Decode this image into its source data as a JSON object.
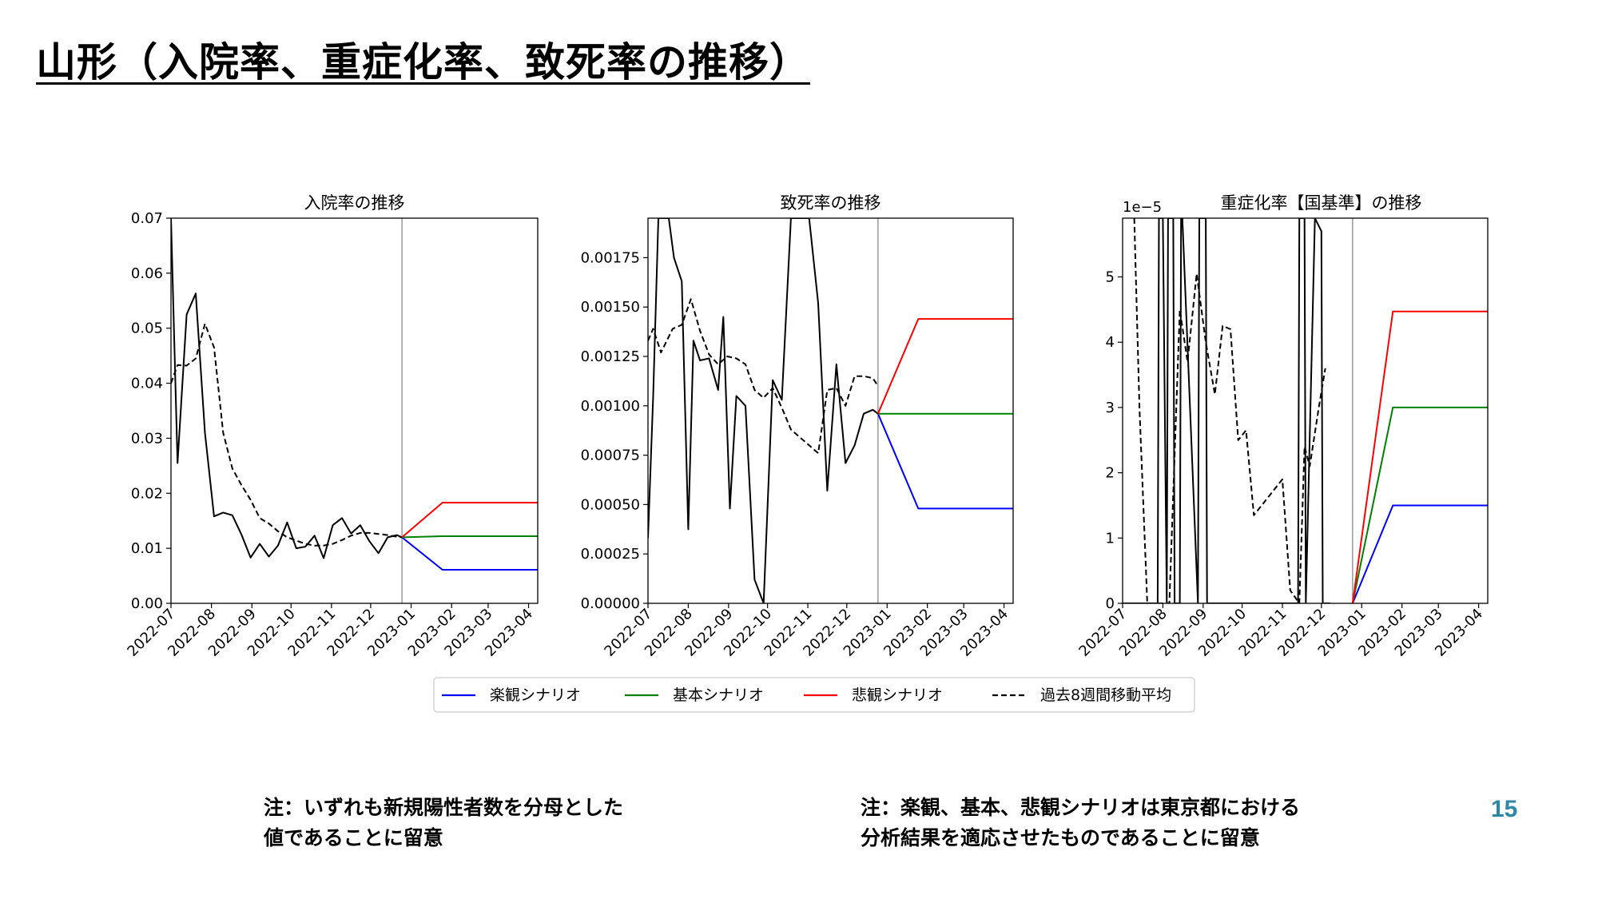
{
  "slide": {
    "title": "山形（入院率、重症化率、致死率の推移）",
    "note_left": [
      "注：いずれも新規陽性者数を分母とした",
      "値であることに留意"
    ],
    "note_right": [
      "注：楽観、基本、悲観シナリオは東京都における",
      "分析結果を適応させたものであることに留意"
    ],
    "page_number": "15"
  },
  "colors": {
    "optimistic": "#0000ff",
    "base": "#008000",
    "pessimistic": "#ff0000",
    "actual": "#000000",
    "moving_avg": "#000000",
    "divider": "#808080"
  },
  "legend": {
    "position": "bottom-center",
    "items": [
      {
        "label": "楽観シナリオ",
        "color": "#0000ff",
        "style": "solid"
      },
      {
        "label": "基本シナリオ",
        "color": "#008000",
        "style": "solid"
      },
      {
        "label": "悲観シナリオ",
        "color": "#ff0000",
        "style": "solid"
      },
      {
        "label": "過去8週間移動平均",
        "color": "#000000",
        "style": "dashed"
      }
    ]
  },
  "chart_data": [
    {
      "type": "line",
      "title": "入院率の推移",
      "x_ticks": [
        "2022-07",
        "2022-08",
        "2022-09",
        "2022-10",
        "2022-11",
        "2022-12",
        "2023-01",
        "2023-02",
        "2023-03",
        "2023-04"
      ],
      "xlim": [
        "2022-07-01",
        "2023-04-08"
      ],
      "divider_x": "2022-12-25",
      "ylim": [
        0,
        0.07
      ],
      "y_ticks": [
        "0.00",
        "0.01",
        "0.02",
        "0.03",
        "0.04",
        "0.05",
        "0.06",
        "0.07"
      ],
      "y_multiplier": "",
      "grid": false,
      "series": [
        {
          "name": "actual",
          "style": "solid",
          "x": [
            "2022-07-01",
            "2022-07-06",
            "2022-07-13",
            "2022-07-20",
            "2022-07-27",
            "2022-08-03",
            "2022-08-10",
            "2022-08-17",
            "2022-08-24",
            "2022-08-31",
            "2022-09-07",
            "2022-09-14",
            "2022-09-21",
            "2022-09-28",
            "2022-10-05",
            "2022-10-12",
            "2022-10-19",
            "2022-10-26",
            "2022-11-02",
            "2022-11-09",
            "2022-11-16",
            "2022-11-23",
            "2022-11-30",
            "2022-12-07",
            "2022-12-14",
            "2022-12-21",
            "2022-12-25"
          ],
          "y": [
            0.07,
            0.0255,
            0.0525,
            0.0563,
            0.031,
            0.0158,
            0.0165,
            0.016,
            0.0125,
            0.0083,
            0.0108,
            0.0085,
            0.0105,
            0.0147,
            0.01,
            0.0103,
            0.0123,
            0.0082,
            0.0142,
            0.0155,
            0.0127,
            0.0142,
            0.0113,
            0.0091,
            0.012,
            0.0124,
            0.012
          ]
        },
        {
          "name": "moving_avg",
          "style": "dashed",
          "x": [
            "2022-07-01",
            "2022-07-06",
            "2022-07-13",
            "2022-07-20",
            "2022-07-27",
            "2022-08-03",
            "2022-08-10",
            "2022-08-17",
            "2022-08-24",
            "2022-08-31",
            "2022-09-07",
            "2022-09-14",
            "2022-09-21",
            "2022-09-28",
            "2022-10-05",
            "2022-10-12",
            "2022-10-19",
            "2022-10-26",
            "2022-11-02",
            "2022-11-09",
            "2022-11-16",
            "2022-11-23",
            "2022-11-30",
            "2022-12-07",
            "2022-12-14",
            "2022-12-21",
            "2022-12-25"
          ],
          "y": [
            0.04,
            0.0433,
            0.0432,
            0.0445,
            0.0508,
            0.0465,
            0.031,
            0.0245,
            0.0215,
            0.0188,
            0.0155,
            0.0145,
            0.0131,
            0.012,
            0.0114,
            0.0108,
            0.0105,
            0.0105,
            0.0108,
            0.0115,
            0.0123,
            0.0128,
            0.0128,
            0.0126,
            0.0124,
            0.0121,
            0.012
          ]
        },
        {
          "name": "楽観シナリオ",
          "color": "#0000ff",
          "x": [
            "2022-12-25",
            "2023-01-25",
            "2023-04-08"
          ],
          "y": [
            0.012,
            0.0061,
            0.0061
          ]
        },
        {
          "name": "基本シナリオ",
          "color": "#008000",
          "x": [
            "2022-12-25",
            "2023-01-25",
            "2023-04-08"
          ],
          "y": [
            0.012,
            0.0122,
            0.0122
          ]
        },
        {
          "name": "悲観シナリオ",
          "color": "#ff0000",
          "x": [
            "2022-12-25",
            "2023-01-25",
            "2023-04-08"
          ],
          "y": [
            0.012,
            0.0183,
            0.0183
          ]
        }
      ]
    },
    {
      "type": "line",
      "title": "致死率の推移",
      "x_ticks": [
        "2022-07",
        "2022-08",
        "2022-09",
        "2022-10",
        "2022-11",
        "2022-12",
        "2023-01",
        "2023-02",
        "2023-03",
        "2023-04"
      ],
      "xlim": [
        "2022-07-01",
        "2023-04-08"
      ],
      "divider_x": "2022-12-25",
      "ylim": [
        0,
        0.00195
      ],
      "y_ticks": [
        "0.00000",
        "0.00025",
        "0.00050",
        "0.00075",
        "0.00100",
        "0.00125",
        "0.00150",
        "0.00175"
      ],
      "y_multiplier": "",
      "grid": false,
      "series": [
        {
          "name": "actual",
          "style": "solid",
          "x": [
            "2022-07-01",
            "2022-07-05",
            "2022-07-09",
            "2022-07-13",
            "2022-07-17",
            "2022-07-21",
            "2022-07-27",
            "2022-08-01",
            "2022-08-05",
            "2022-08-10",
            "2022-08-17",
            "2022-08-24",
            "2022-08-28",
            "2022-09-02",
            "2022-09-07",
            "2022-09-14",
            "2022-09-21",
            "2022-09-28",
            "2022-10-05",
            "2022-10-12",
            "2022-10-19",
            "2022-10-23",
            "2022-10-26",
            "2022-11-02",
            "2022-11-09",
            "2022-11-16",
            "2022-11-23",
            "2022-11-30",
            "2022-12-07",
            "2022-12-14",
            "2022-12-21",
            "2022-12-25"
          ],
          "y": [
            0.00033,
            0.00105,
            0.00195,
            0.00195,
            0.00195,
            0.00175,
            0.00163,
            0.000375,
            0.00133,
            0.00123,
            0.00124,
            0.00108,
            0.00145,
            0.00048,
            0.00105,
            0.001,
            0.00012,
            0.0,
            0.00113,
            0.00103,
            0.00195,
            0.00195,
            0.00195,
            0.00195,
            0.00152,
            0.00057,
            0.00121,
            0.00071,
            0.0008,
            0.00096,
            0.00098,
            0.00096
          ]
        },
        {
          "name": "moving_avg",
          "style": "dashed",
          "x": [
            "2022-07-01",
            "2022-07-05",
            "2022-07-11",
            "2022-07-20",
            "2022-07-27",
            "2022-08-03",
            "2022-08-10",
            "2022-08-17",
            "2022-08-24",
            "2022-08-31",
            "2022-09-07",
            "2022-09-14",
            "2022-09-21",
            "2022-09-28",
            "2022-10-05",
            "2022-10-12",
            "2022-10-19",
            "2022-10-26",
            "2022-11-02",
            "2022-11-09",
            "2022-11-16",
            "2022-11-23",
            "2022-11-30",
            "2022-12-07",
            "2022-12-14",
            "2022-12-21",
            "2022-12-25"
          ],
          "y": [
            0.00133,
            0.00139,
            0.00127,
            0.00139,
            0.00141,
            0.00154,
            0.00138,
            0.00126,
            0.00121,
            0.00125,
            0.00124,
            0.00121,
            0.00108,
            0.00104,
            0.00109,
            0.00099,
            0.00088,
            0.00084,
            0.0008,
            0.00076,
            0.00108,
            0.00109,
            0.001,
            0.00115,
            0.00115,
            0.00114,
            0.0011
          ]
        },
        {
          "name": "楽観シナリオ",
          "color": "#0000ff",
          "x": [
            "2022-12-25",
            "2023-01-25",
            "2023-04-08"
          ],
          "y": [
            0.00096,
            0.00048,
            0.00048
          ]
        },
        {
          "name": "基本シナリオ",
          "color": "#008000",
          "x": [
            "2022-12-25",
            "2023-01-25",
            "2023-04-08"
          ],
          "y": [
            0.00096,
            0.00096,
            0.00096
          ]
        },
        {
          "name": "悲観シナリオ",
          "color": "#ff0000",
          "x": [
            "2022-12-25",
            "2023-01-25",
            "2023-04-08"
          ],
          "y": [
            0.00096,
            0.00144,
            0.00144
          ]
        }
      ]
    },
    {
      "type": "line",
      "title": "重症化率【国基準】の推移",
      "x_ticks": [
        "2022-07",
        "2022-08",
        "2022-09",
        "2022-10",
        "2022-11",
        "2022-12",
        "2023-01",
        "2023-02",
        "2023-03",
        "2023-04"
      ],
      "xlim": [
        "2022-07-01",
        "2023-04-08"
      ],
      "divider_x": "2022-12-25",
      "ylim": [
        0,
        5.9
      ],
      "y_ticks": [
        "0",
        "1",
        "2",
        "3",
        "4",
        "5"
      ],
      "y_multiplier": "1e−5",
      "grid": false,
      "series": [
        {
          "name": "actual",
          "style": "solid",
          "x": [
            "2022-07-01",
            "2022-07-28",
            "2022-07-29",
            "2022-08-01",
            "2022-08-04",
            "2022-08-05",
            "2022-08-09",
            "2022-08-10",
            "2022-08-14",
            "2022-08-15",
            "2022-08-16",
            "2022-08-28",
            "2022-08-29",
            "2022-09-03",
            "2022-09-04",
            "2022-09-05",
            "2022-11-13",
            "2022-11-14",
            "2022-11-18",
            "2022-11-19",
            "2022-11-26",
            "2022-12-01",
            "2022-12-02",
            "2022-12-07",
            "2022-12-08"
          ],
          "y": [
            0,
            0,
            5.9,
            5.9,
            0,
            5.9,
            5.9,
            0,
            0,
            5.9,
            5.9,
            0,
            5.9,
            5.9,
            0,
            0,
            0,
            5.9,
            5.9,
            0,
            5.9,
            5.7,
            0,
            0,
            0
          ]
        },
        {
          "name": "moving_avg",
          "style": "dashed",
          "x": [
            "2022-07-10",
            "2022-07-14",
            "2022-07-20",
            "2022-08-06",
            "2022-08-14",
            "2022-08-20",
            "2022-08-27",
            "2022-09-03",
            "2022-09-10",
            "2022-09-16",
            "2022-09-22",
            "2022-09-28",
            "2022-10-04",
            "2022-10-10",
            "2022-11-01",
            "2022-11-07",
            "2022-11-14",
            "2022-11-18",
            "2022-11-22",
            "2022-11-29",
            "2022-12-04"
          ],
          "y": [
            5.9,
            3.0,
            0,
            0,
            4.5,
            3.7,
            5.05,
            4.0,
            3.2,
            4.25,
            4.2,
            2.5,
            2.65,
            1.35,
            1.9,
            0.2,
            0,
            2.4,
            2.1,
            3.0,
            3.6
          ]
        },
        {
          "name": "楽観シナリオ",
          "color": "#0000ff",
          "x": [
            "2022-12-25",
            "2023-01-25",
            "2023-04-08"
          ],
          "y": [
            0,
            1.5,
            1.5
          ]
        },
        {
          "name": "基本シナリオ",
          "color": "#008000",
          "x": [
            "2022-12-25",
            "2023-01-25",
            "2023-04-08"
          ],
          "y": [
            0,
            3.0,
            3.0
          ]
        },
        {
          "name": "悲観シナリオ",
          "color": "#ff0000",
          "x": [
            "2022-12-25",
            "2023-01-25",
            "2023-04-08"
          ],
          "y": [
            0,
            4.47,
            4.47
          ]
        }
      ]
    }
  ]
}
